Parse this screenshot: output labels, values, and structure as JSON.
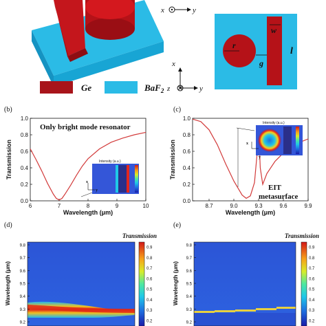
{
  "legend": {
    "ge": "Ge",
    "baf2": "BaF",
    "baf2_sub": "2"
  },
  "top_view": {
    "axis_x": "x",
    "axis_y": "y",
    "label_r": "r",
    "label_g": "g",
    "label_w": "w",
    "label_l": "l"
  },
  "side_axes": {
    "axis_x": "x",
    "axis_y": "y",
    "axis_z": "z"
  },
  "panel_b": {
    "tag": "(b)",
    "title": "Only bright mode resonator",
    "inset_title": "Intensity (a.u.)",
    "inset_x": "x",
    "inset_y": "y"
  },
  "panel_c": {
    "tag": "(c)",
    "annotation_line1": "EIT",
    "annotation_line2": "metasurface",
    "inset_title": "Intensity (a.u.)",
    "inset_x": "x",
    "inset_y": "y"
  },
  "panel_d": {
    "tag": "(d)",
    "colorbar_title": "Transmission"
  },
  "panel_e": {
    "tag": "(e)",
    "colorbar_title": "Transmission"
  },
  "chart_data": [
    {
      "type": "line",
      "panel": "b",
      "xlabel": "Wavelength (μm)",
      "ylabel": "Transmission",
      "xlim": [
        6,
        10
      ],
      "ylim": [
        0,
        1.0
      ],
      "xticks": [
        "6",
        "7",
        "8",
        "9",
        "10"
      ],
      "yticks": [
        "0.0",
        "0.2",
        "0.4",
        "0.6",
        "0.8",
        "1.0"
      ],
      "series": [
        {
          "color": "#d23a3a",
          "x": [
            6.0,
            6.2,
            6.4,
            6.6,
            6.8,
            6.9,
            7.0,
            7.1,
            7.2,
            7.4,
            7.6,
            7.8,
            8.0,
            8.4,
            8.8,
            9.2,
            9.6,
            10.0
          ],
          "y": [
            0.63,
            0.5,
            0.36,
            0.21,
            0.08,
            0.03,
            0.01,
            0.03,
            0.08,
            0.19,
            0.31,
            0.42,
            0.51,
            0.63,
            0.71,
            0.76,
            0.8,
            0.83
          ]
        }
      ]
    },
    {
      "type": "line",
      "panel": "c",
      "xlabel": "Wavelength (μm)",
      "ylabel": "Transmission",
      "xlim": [
        8.5,
        9.9
      ],
      "ylim": [
        0,
        1.0
      ],
      "xticks": [
        "8.7",
        "9.0",
        "9.3",
        "9.6",
        "9.9"
      ],
      "yticks": [
        "0.0",
        "0.2",
        "0.4",
        "0.6",
        "0.8",
        "1.0"
      ],
      "series": [
        {
          "color": "#d23a3a",
          "x": [
            8.5,
            8.6,
            8.7,
            8.8,
            8.9,
            9.0,
            9.1,
            9.15,
            9.2,
            9.25,
            9.28,
            9.3,
            9.32,
            9.35,
            9.4,
            9.5,
            9.6,
            9.7,
            9.8,
            9.9
          ],
          "y": [
            0.99,
            0.96,
            0.86,
            0.68,
            0.45,
            0.24,
            0.07,
            0.03,
            0.06,
            0.22,
            0.55,
            0.9,
            0.4,
            0.2,
            0.33,
            0.48,
            0.58,
            0.65,
            0.71,
            0.75
          ]
        }
      ]
    },
    {
      "type": "heatmap",
      "panel": "d",
      "ylabel": "Wavelength (μm)",
      "ylim": [
        9.2,
        9.8
      ],
      "yticks": [
        "9.2",
        "9.3",
        "9.4",
        "9.5",
        "9.6",
        "9.7",
        "9.8"
      ],
      "colorbar_ticks": [
        "0.2",
        "0.3",
        "0.4",
        "0.5",
        "0.6",
        "0.7",
        "0.8",
        "0.9"
      ]
    },
    {
      "type": "heatmap",
      "panel": "e",
      "ylabel": "Wavelength (μm)",
      "ylim": [
        9.2,
        9.8
      ],
      "yticks": [
        "9.2",
        "9.3",
        "9.4",
        "9.5",
        "9.6",
        "9.7",
        "9.8"
      ],
      "colorbar_ticks": [
        "0.2",
        "0.3",
        "0.4",
        "0.5",
        "0.6",
        "0.7",
        "0.8",
        "0.9"
      ]
    }
  ]
}
